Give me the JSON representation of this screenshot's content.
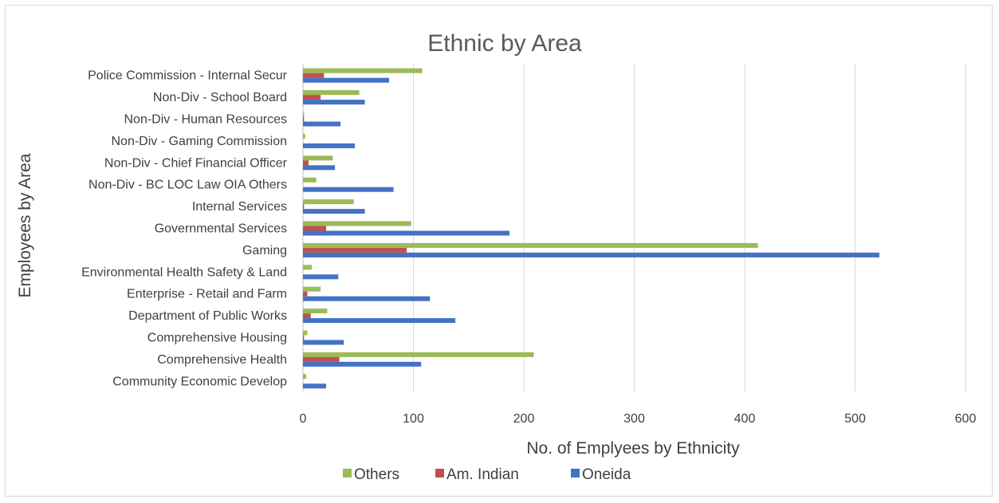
{
  "chart_data": {
    "type": "bar",
    "orientation": "horizontal",
    "title": "Ethnic by Area",
    "xlabel": "No. of Emplyees by Ethnicity",
    "ylabel": "Employees by Area",
    "xlim": [
      0,
      600
    ],
    "xticks": [
      0,
      100,
      200,
      300,
      400,
      500,
      600
    ],
    "grid": true,
    "legend_position": "bottom",
    "categories": [
      "Community Economic Develop",
      "Comprehensive Health",
      "Comprehensive Housing",
      "Department of Public Works",
      "Enterprise - Retail and Farm",
      "Environmental Health Safety & Land",
      "Gaming",
      "Governmental Services",
      "Internal Services",
      "Non-Div - BC LOC Law OIA Others",
      "Non-Div - Chief Financial Officer",
      "Non-Div - Gaming Commission",
      "Non-Div - Human Resources",
      "Non-Div - School Board",
      "Police Commission - Internal Secur"
    ],
    "series": [
      {
        "name": "Oneida",
        "color": "#4472c4",
        "values": [
          21,
          107,
          37,
          138,
          115,
          32,
          522,
          187,
          56,
          82,
          29,
          47,
          34,
          56,
          78
        ]
      },
      {
        "name": "Am. Indian",
        "color": "#c0504d",
        "values": [
          0,
          33,
          1,
          7,
          4,
          0,
          94,
          21,
          1,
          0,
          5,
          0,
          1,
          16,
          19
        ]
      },
      {
        "name": "Others",
        "color": "#9bbb59",
        "values": [
          3,
          209,
          4,
          22,
          16,
          8,
          412,
          98,
          46,
          12,
          27,
          2,
          1,
          51,
          108
        ]
      }
    ],
    "legend_order": [
      "Others",
      "Am. Indian",
      "Oneida"
    ]
  }
}
